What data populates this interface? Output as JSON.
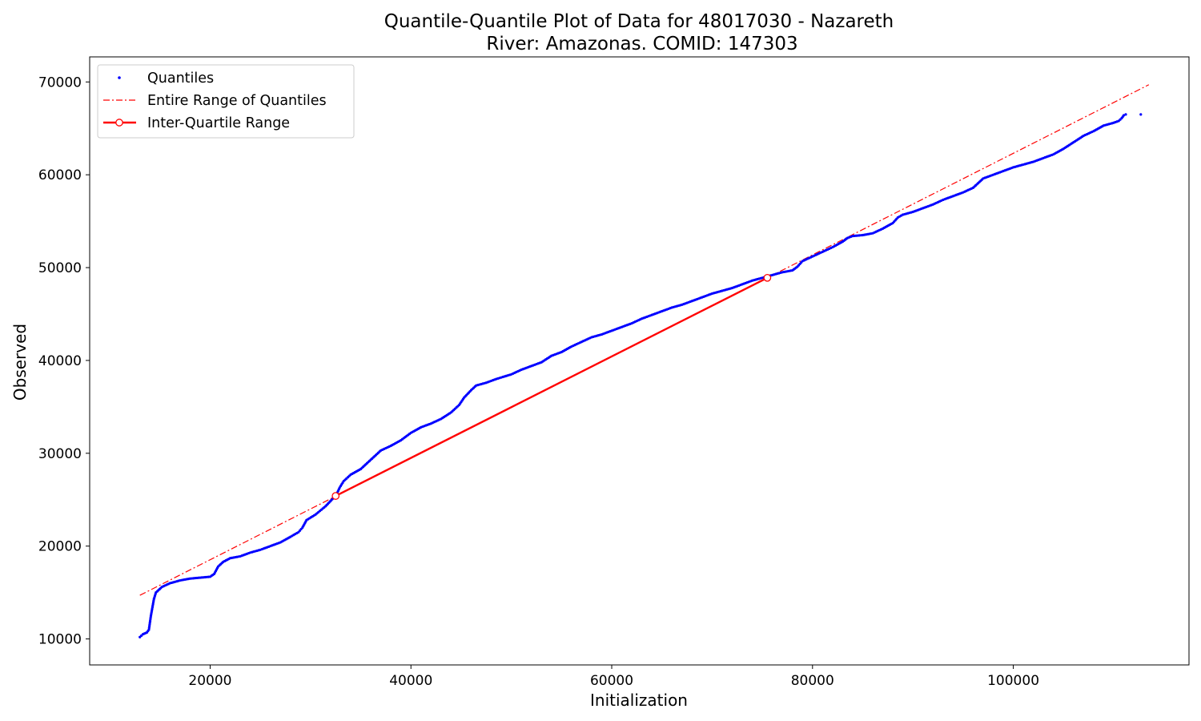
{
  "chart_data": {
    "type": "scatter",
    "title": "Quantile-Quantile Plot of Data for 48017030 - Nazareth",
    "subtitle": "River: Amazonas. COMID: 147303",
    "xlabel": "Initialization",
    "ylabel": "Observed",
    "xlim": [
      8000,
      117500
    ],
    "ylim": [
      7200,
      72700
    ],
    "xticks": [
      20000,
      40000,
      60000,
      80000,
      100000
    ],
    "yticks": [
      10000,
      20000,
      30000,
      40000,
      50000,
      60000,
      70000
    ],
    "grid": false,
    "legend_position": "upper-left",
    "legend": [
      {
        "label": "Quantiles",
        "style": "points",
        "color": "#0000ff"
      },
      {
        "label": "Entire Range of Quantiles",
        "style": "dash-dot",
        "color": "#ff0000"
      },
      {
        "label": "Inter-Quartile Range",
        "style": "solid-with-circle-markers",
        "color": "#ff0000"
      }
    ],
    "series": [
      {
        "name": "Quantiles",
        "color": "#0000ff",
        "trace": [
          [
            13000,
            10200
          ],
          [
            13300,
            10500
          ],
          [
            13700,
            10700
          ],
          [
            13900,
            11000
          ],
          [
            14100,
            12500
          ],
          [
            14400,
            14300
          ],
          [
            14600,
            15000
          ],
          [
            15200,
            15600
          ],
          [
            16000,
            16000
          ],
          [
            17000,
            16300
          ],
          [
            18000,
            16500
          ],
          [
            19000,
            16600
          ],
          [
            20000,
            16700
          ],
          [
            20400,
            17000
          ],
          [
            20800,
            17800
          ],
          [
            21300,
            18300
          ],
          [
            22000,
            18700
          ],
          [
            23000,
            18900
          ],
          [
            24000,
            19300
          ],
          [
            25000,
            19600
          ],
          [
            26000,
            20000
          ],
          [
            27000,
            20400
          ],
          [
            28000,
            21000
          ],
          [
            28800,
            21500
          ],
          [
            29200,
            22000
          ],
          [
            29600,
            22800
          ],
          [
            30500,
            23400
          ],
          [
            31500,
            24300
          ],
          [
            32300,
            25200
          ],
          [
            32600,
            25600
          ],
          [
            32900,
            26300
          ],
          [
            33300,
            27000
          ],
          [
            34000,
            27700
          ],
          [
            35000,
            28300
          ],
          [
            36000,
            29300
          ],
          [
            37000,
            30300
          ],
          [
            38000,
            30800
          ],
          [
            39000,
            31400
          ],
          [
            40000,
            32200
          ],
          [
            41000,
            32800
          ],
          [
            42000,
            33200
          ],
          [
            43000,
            33700
          ],
          [
            44000,
            34400
          ],
          [
            44800,
            35200
          ],
          [
            45300,
            36000
          ],
          [
            46000,
            36800
          ],
          [
            46500,
            37300
          ],
          [
            47500,
            37600
          ],
          [
            48500,
            38000
          ],
          [
            50000,
            38500
          ],
          [
            51000,
            39000
          ],
          [
            52000,
            39400
          ],
          [
            53000,
            39800
          ],
          [
            54000,
            40500
          ],
          [
            55000,
            40900
          ],
          [
            56000,
            41500
          ],
          [
            57000,
            42000
          ],
          [
            58000,
            42500
          ],
          [
            59000,
            42800
          ],
          [
            60000,
            43200
          ],
          [
            61000,
            43600
          ],
          [
            62000,
            44000
          ],
          [
            63000,
            44500
          ],
          [
            64000,
            44900
          ],
          [
            65000,
            45300
          ],
          [
            66000,
            45700
          ],
          [
            67000,
            46000
          ],
          [
            68000,
            46400
          ],
          [
            69000,
            46800
          ],
          [
            70000,
            47200
          ],
          [
            71000,
            47500
          ],
          [
            72000,
            47800
          ],
          [
            73000,
            48200
          ],
          [
            74000,
            48600
          ],
          [
            75000,
            48900
          ],
          [
            76000,
            49200
          ],
          [
            77000,
            49500
          ],
          [
            78000,
            49700
          ],
          [
            78500,
            50100
          ],
          [
            79000,
            50700
          ],
          [
            80000,
            51200
          ],
          [
            81000,
            51700
          ],
          [
            82000,
            52200
          ],
          [
            83000,
            52800
          ],
          [
            83500,
            53200
          ],
          [
            84000,
            53400
          ],
          [
            85000,
            53500
          ],
          [
            86000,
            53700
          ],
          [
            87000,
            54200
          ],
          [
            88000,
            54800
          ],
          [
            88500,
            55400
          ],
          [
            89000,
            55700
          ],
          [
            90000,
            56000
          ],
          [
            91000,
            56400
          ],
          [
            92000,
            56800
          ],
          [
            93000,
            57300
          ],
          [
            94000,
            57700
          ],
          [
            95000,
            58100
          ],
          [
            96000,
            58600
          ],
          [
            96500,
            59100
          ],
          [
            97000,
            59600
          ],
          [
            98000,
            60000
          ],
          [
            99000,
            60400
          ],
          [
            100000,
            60800
          ],
          [
            101000,
            61100
          ],
          [
            102000,
            61400
          ],
          [
            103000,
            61800
          ],
          [
            104000,
            62200
          ],
          [
            105000,
            62800
          ],
          [
            106000,
            63500
          ],
          [
            107000,
            64200
          ],
          [
            108000,
            64700
          ],
          [
            109000,
            65300
          ],
          [
            110000,
            65600
          ],
          [
            110500,
            65800
          ],
          [
            110800,
            66100
          ],
          [
            111000,
            66400
          ],
          [
            111200,
            66500
          ]
        ],
        "outliers": [
          [
            112700,
            66500
          ]
        ]
      }
    ],
    "entire_range_line": {
      "name": "Entire Range of Quantiles",
      "color": "#ff0000",
      "points": [
        [
          13000,
          14700
        ],
        [
          113500,
          69700
        ]
      ]
    },
    "iqr_line": {
      "name": "Inter-Quartile Range",
      "color": "#ff0000",
      "points": [
        [
          32500,
          25400
        ],
        [
          75500,
          48900
        ]
      ]
    }
  }
}
